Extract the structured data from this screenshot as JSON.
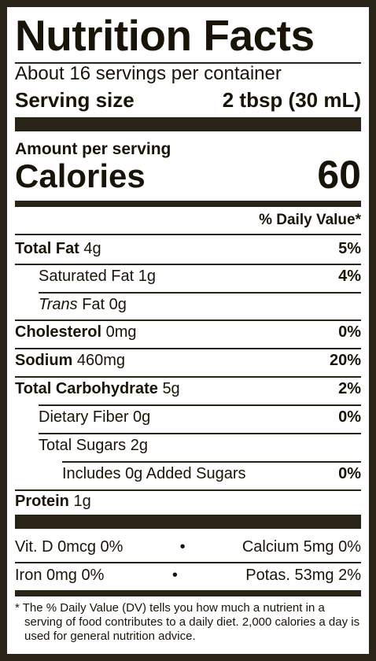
{
  "title": "Nutrition Facts",
  "servings_per_container": "About 16 servings per container",
  "serving_size": {
    "label": "Serving size",
    "value": "2 tbsp (30 mL)"
  },
  "amount_per_serving": "Amount per serving",
  "calories": {
    "label": "Calories",
    "value": "60"
  },
  "daily_value_header": "% Daily Value*",
  "nutrients": {
    "total_fat": {
      "label": "Total Fat",
      "amount": "4g",
      "dv": "5%"
    },
    "saturated_fat": {
      "label": "Saturated Fat",
      "amount": "1g",
      "dv": "4%"
    },
    "trans_fat": {
      "label_italic": "Trans",
      "label": "Fat",
      "amount": "0g"
    },
    "cholesterol": {
      "label": "Cholesterol",
      "amount": "0mg",
      "dv": "0%"
    },
    "sodium": {
      "label": "Sodium",
      "amount": "460mg",
      "dv": "20%"
    },
    "total_carbohydrate": {
      "label": "Total Carbohydrate",
      "amount": "5g",
      "dv": "2%"
    },
    "dietary_fiber": {
      "label": "Dietary Fiber",
      "amount": "0g",
      "dv": "0%"
    },
    "total_sugars": {
      "label": "Total Sugars",
      "amount": "2g"
    },
    "added_sugars": {
      "label_pre": "Includes",
      "amount": "0g",
      "label_post": "Added Sugars",
      "dv": "0%"
    },
    "protein": {
      "label": "Protein",
      "amount": "1g"
    }
  },
  "vitamins": {
    "vit_d": "Vit. D 0mcg 0%",
    "calcium": "Calcium 5mg 0%",
    "iron": "Iron 0mg 0%",
    "potassium": "Potas. 53mg 2%",
    "separator": "•"
  },
  "footnote": "* The % Daily Value (DV) tells you how much a nutrient in a serving of food contributes to a daily diet. 2,000 calories a day is used for general nutrition advice.",
  "colors": {
    "ink": "#1a1408",
    "border": "#2a2418",
    "background": "#ffffff"
  }
}
